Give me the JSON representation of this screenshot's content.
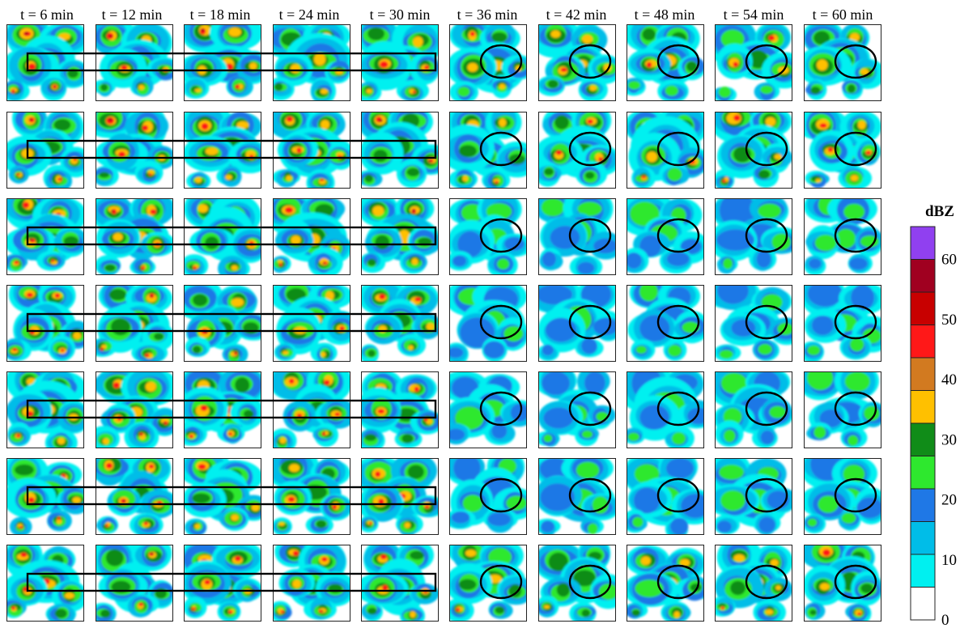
{
  "figure": {
    "time_labels": [
      "t = 6 min",
      "t = 12 min",
      "t = 18 min",
      "t = 24 min",
      "t = 30 min",
      "t = 36 min",
      "t = 42 min",
      "t = 48 min",
      "t = 54 min",
      "t = 60 min"
    ],
    "rows": 7,
    "colorbar": {
      "title": "dBZ",
      "tick_labels": [
        "0",
        "10",
        "20",
        "30",
        "40",
        "50",
        "60"
      ],
      "colors": [
        "#ffffff",
        "#00f0f0",
        "#00bde8",
        "#1f78e6",
        "#2ee82e",
        "#108c18",
        "#ffc000",
        "#d27a20",
        "#ff1818",
        "#c80000",
        "#a00020",
        "#9040f0"
      ]
    },
    "rect_annotation": {
      "spans_columns": 5
    },
    "ellipse_annotation": {
      "start_column": 6
    }
  }
}
